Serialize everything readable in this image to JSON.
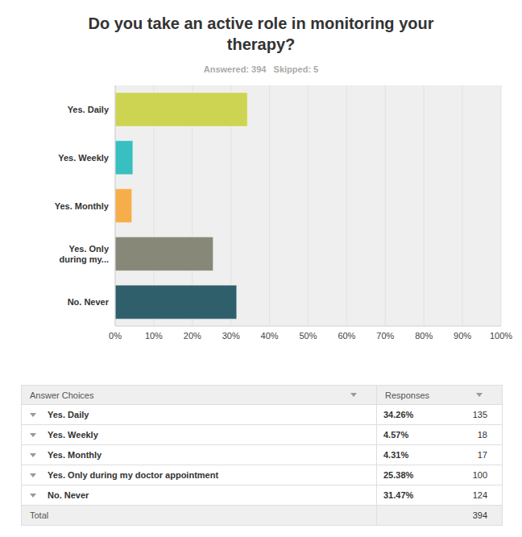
{
  "chart_data": {
    "type": "bar",
    "title": "Do you take an active role in monitoring your therapy?",
    "subtitle": "Answered: 394   Skipped: 5",
    "orientation": "horizontal",
    "categories": [
      "Yes. Daily",
      "Yes. Weekly",
      "Yes. Monthly",
      "Yes. Only during my...",
      "No. Never"
    ],
    "values": [
      34.26,
      4.57,
      4.31,
      25.38,
      31.47
    ],
    "colors": [
      "#cdd452",
      "#38bfc0",
      "#f5ae4a",
      "#888878",
      "#2f5f6b"
    ],
    "xlim": [
      0,
      100
    ],
    "xticks": [
      {
        "value": 0,
        "label": "0%"
      },
      {
        "value": 10,
        "label": "10%"
      },
      {
        "value": 20,
        "label": "20%"
      },
      {
        "value": 30,
        "label": "30%"
      },
      {
        "value": 40,
        "label": "40%"
      },
      {
        "value": 50,
        "label": "50%"
      },
      {
        "value": 60,
        "label": "60%"
      },
      {
        "value": 70,
        "label": "70%"
      },
      {
        "value": 80,
        "label": "80%"
      },
      {
        "value": 90,
        "label": "90%"
      },
      {
        "value": 100,
        "label": "100%"
      }
    ],
    "grid": true
  },
  "table": {
    "header": [
      "Answer Choices",
      "Responses"
    ],
    "rows": [
      [
        "Yes. Daily",
        "34.26%",
        135
      ],
      [
        "Yes. Weekly",
        "4.57%",
        18
      ],
      [
        "Yes. Monthly",
        "4.31%",
        17
      ],
      [
        "Yes. Only during my doctor appointment",
        "25.38%",
        100
      ],
      [
        "No. Never",
        "31.47%",
        124
      ]
    ],
    "total": [
      "Total",
      394
    ]
  }
}
